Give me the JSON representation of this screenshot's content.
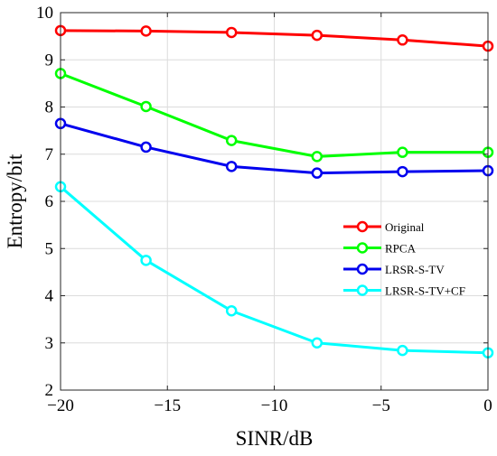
{
  "chart_data": {
    "type": "line",
    "title": "",
    "xlabel": "SINR/dB",
    "ylabel": "Entropy/bit",
    "x": [
      -20,
      -16,
      -12,
      -8,
      -4,
      0
    ],
    "xlim": [
      -20,
      0
    ],
    "ylim": [
      2,
      10
    ],
    "xticks": [
      -20,
      -15,
      -10,
      -5,
      0
    ],
    "xtick_labels": [
      "−20",
      "−15",
      "−10",
      "−5",
      "0"
    ],
    "yticks": [
      2,
      3,
      4,
      5,
      6,
      7,
      8,
      9,
      10
    ],
    "ytick_labels": [
      "2",
      "3",
      "4",
      "5",
      "6",
      "7",
      "8",
      "9",
      "10"
    ],
    "grid": true,
    "legend_position": "center-right",
    "series": [
      {
        "name": "Original",
        "color": "#ff0000",
        "values": [
          9.62,
          9.61,
          9.58,
          9.52,
          9.42,
          9.29
        ]
      },
      {
        "name": "RPCA",
        "color": "#00ff00",
        "values": [
          8.71,
          8.01,
          7.29,
          6.95,
          7.04,
          7.04
        ]
      },
      {
        "name": "LRSR-S-TV",
        "color": "#0000ee",
        "values": [
          7.65,
          7.15,
          6.74,
          6.6,
          6.63,
          6.65
        ]
      },
      {
        "name": "LRSR-S-TV+CF",
        "color": "#00ffff",
        "values": [
          6.31,
          4.75,
          3.68,
          3.0,
          2.84,
          2.79
        ]
      }
    ]
  }
}
